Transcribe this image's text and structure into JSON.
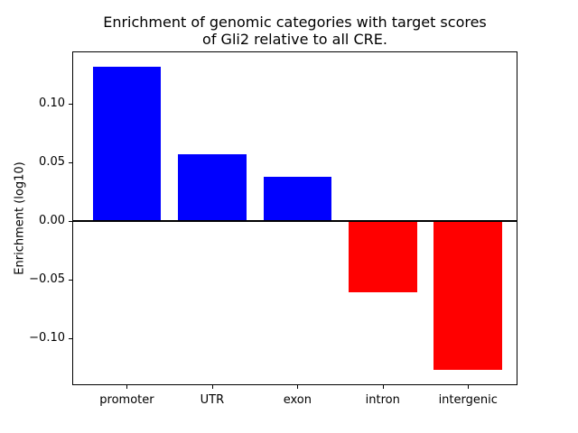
{
  "figure": {
    "background": "#ffffff",
    "axis_color": "#000000"
  },
  "chart_data": {
    "type": "bar",
    "title": "Enrichment of genomic categories with target scores\nof Gli2 relative to all CRE.",
    "xlabel": "",
    "ylabel": "Enrichment (log10)",
    "categories": [
      "promoter",
      "UTR",
      "exon",
      "intron",
      "intergenic"
    ],
    "values": [
      0.132,
      0.057,
      0.038,
      -0.061,
      -0.127
    ],
    "positive_color": "#0000ff",
    "negative_color": "#ff0000",
    "bar_width": 0.8,
    "xlim": [
      -0.64,
      4.58
    ],
    "ylim": [
      -0.14,
      0.145
    ],
    "yticks": [
      0.1,
      0.05,
      0.0,
      -0.05,
      -0.1
    ],
    "ytick_labels": [
      "0.10",
      "0.05",
      "0.00",
      "−0.05",
      "−0.10"
    ],
    "grid": false,
    "legend": false,
    "zero_line": true,
    "zero_line_width": 2.5
  }
}
